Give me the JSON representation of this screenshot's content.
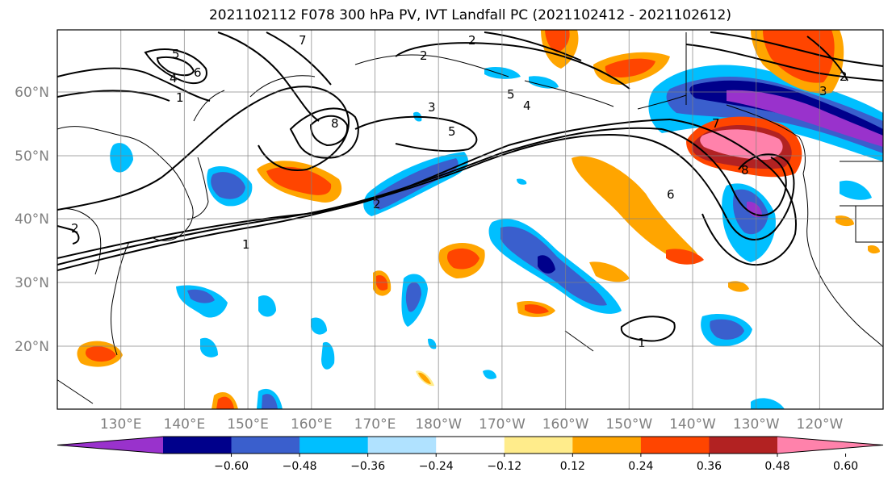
{
  "title": "2021102112 F078 300 hPa PV, IVT Landfall PC (2021102412 - 2021102612)",
  "lat_labels": [
    "60°N",
    "50°N",
    "40°N",
    "30°N",
    "20°N"
  ],
  "lon_labels": [
    "130°E",
    "140°E",
    "150°E",
    "160°E",
    "170°E",
    "180°W",
    "170°W",
    "160°W",
    "150°W",
    "140°W",
    "130°W",
    "120°W"
  ],
  "colorbar": {
    "colors": [
      "#9932cc",
      "#00008b",
      "#3a5fcd",
      "#00bfff",
      "#b0e2ff",
      "#ffffff",
      "#ffec8b",
      "#ffa500",
      "#ff4500",
      "#b22222",
      "#ff82ab"
    ],
    "tick_labels": [
      "−0.60",
      "−0.48",
      "−0.36",
      "−0.24",
      "−0.12",
      "0.12",
      "0.24",
      "0.36",
      "0.48",
      "0.60"
    ]
  },
  "contour_labels": [
    "1",
    "2",
    "3",
    "4",
    "5",
    "6",
    "7",
    "8"
  ]
}
